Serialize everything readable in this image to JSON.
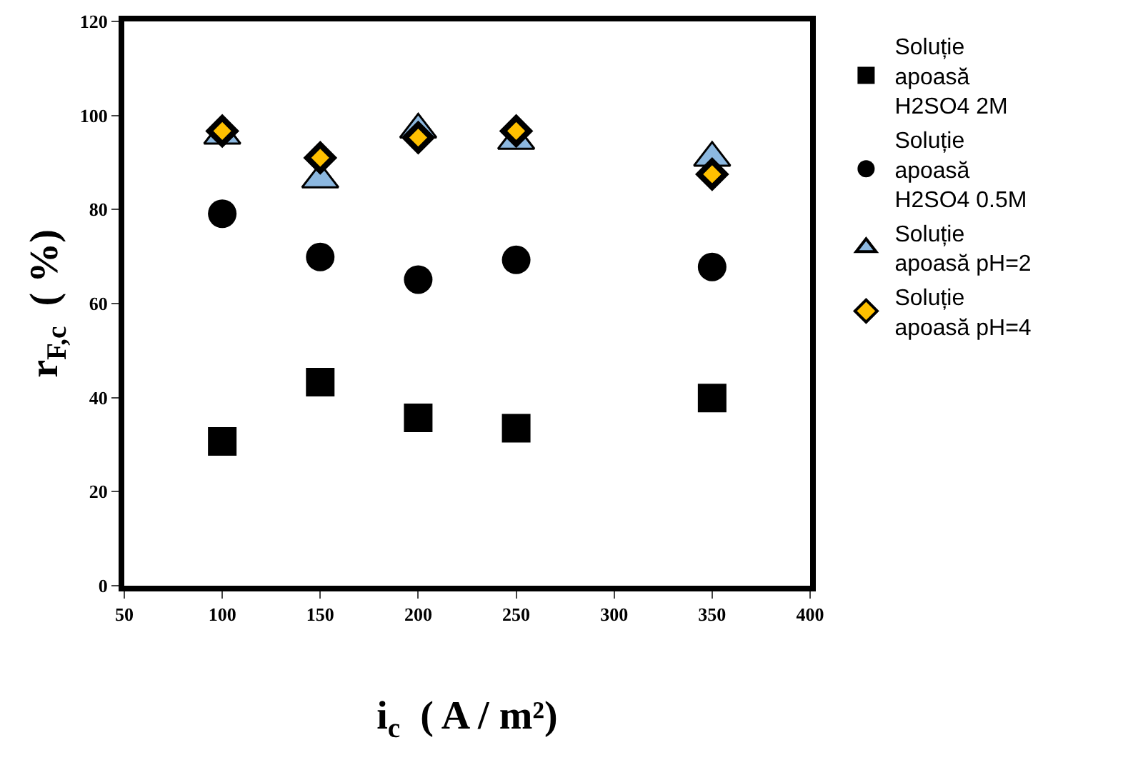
{
  "chart_data": {
    "type": "scatter",
    "xlabel": "i$_{c}$  ( A / m²)",
    "ylabel": "r$_{F,c}$  ( %)",
    "x": [
      100,
      150,
      200,
      250,
      350
    ],
    "series": [
      {
        "name": "Soluție apoasă H2SO4 2M",
        "color": "#000000",
        "marker": "square",
        "values": [
          30.7,
          43.3,
          35.7,
          33.5,
          39.9
        ]
      },
      {
        "name": "Soluție apoasă H2SO4 0.5M",
        "color": "#000000",
        "marker": "circle",
        "values": [
          79.1,
          69.9,
          65.1,
          69.3,
          67.8
        ]
      },
      {
        "name": "Soluție apoasă pH=2",
        "color": "#8cb8e0",
        "marker": "triangle",
        "values": [
          95.7,
          86.4,
          97,
          94.6,
          91
        ]
      },
      {
        "name": "Soluție apoasă pH=4",
        "color": "#ffc000",
        "marker": "diamond",
        "values": [
          96.7,
          91,
          95.3,
          96.7,
          87.5
        ]
      }
    ],
    "xlim": [
      50,
      400
    ],
    "xticks": [
      50,
      100,
      150,
      200,
      250,
      300,
      350,
      400
    ],
    "ylim": [
      0,
      120
    ],
    "yticks": [
      0,
      20,
      40,
      60,
      80,
      100,
      120
    ],
    "legend": "right"
  }
}
